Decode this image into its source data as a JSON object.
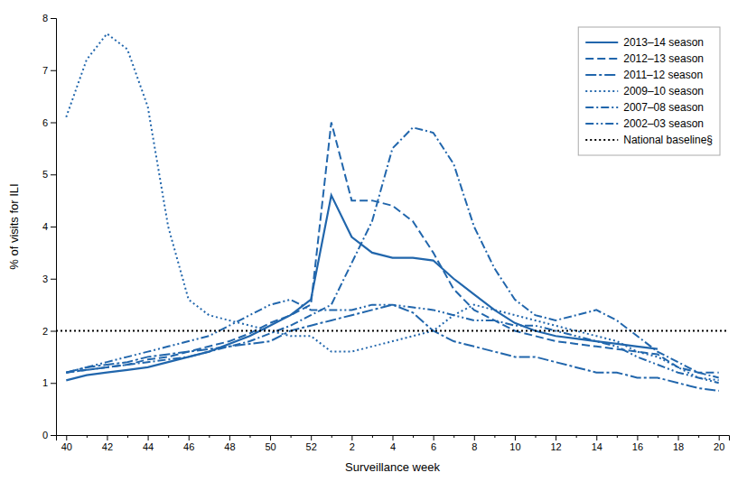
{
  "chart_data": {
    "type": "line",
    "x_label": "Surveillance week",
    "y_label": "% of visits for ILI",
    "categories": [
      "40",
      null,
      "42",
      null,
      "44",
      null,
      "46",
      null,
      "48",
      null,
      "50",
      null,
      "52",
      null,
      "2",
      null,
      "4",
      null,
      "6",
      null,
      "8",
      null,
      "10",
      null,
      "12",
      null,
      "14",
      null,
      "16",
      null,
      "18",
      null,
      "20"
    ],
    "ylim": [
      0,
      8
    ],
    "yticks": [
      0,
      1,
      2,
      3,
      4,
      5,
      6,
      7,
      8
    ],
    "grid": false,
    "legend": "upper right",
    "series": [
      {
        "name": "2013–14 season",
        "color": "#2166ac",
        "line_style": "solid",
        "values": [
          1.05,
          1.15,
          1.2,
          1.25,
          1.3,
          1.4,
          1.5,
          1.6,
          1.75,
          1.9,
          2.1,
          2.3,
          2.6,
          4.6,
          3.8,
          3.5,
          3.4,
          3.4,
          3.35,
          3.0,
          2.7,
          2.4,
          2.15,
          2.0,
          1.9,
          1.85,
          1.8,
          1.75,
          1.7,
          1.65,
          null,
          null,
          null
        ]
      },
      {
        "name": "2012–13 season",
        "color": "#2166ac",
        "line_style": "dashed",
        "values": [
          1.2,
          1.25,
          1.3,
          1.35,
          1.45,
          1.5,
          1.6,
          1.7,
          1.8,
          1.95,
          2.15,
          2.3,
          2.5,
          6.0,
          4.5,
          4.5,
          4.4,
          4.1,
          3.5,
          2.8,
          2.4,
          2.2,
          2.0,
          1.9,
          1.8,
          1.75,
          1.7,
          1.65,
          1.6,
          1.55,
          1.3,
          1.2,
          1.2
        ]
      },
      {
        "name": "2011–12 season",
        "color": "#2166ac",
        "line_style": "longdashdot",
        "values": [
          1.2,
          1.3,
          1.35,
          1.4,
          1.5,
          1.55,
          1.6,
          1.65,
          1.7,
          1.75,
          1.8,
          2.0,
          2.1,
          2.2,
          2.3,
          2.4,
          2.5,
          2.35,
          2.0,
          1.8,
          1.7,
          1.6,
          1.5,
          1.5,
          1.4,
          1.3,
          1.2,
          1.2,
          1.1,
          1.1,
          1.0,
          0.9,
          0.85
        ]
      },
      {
        "name": "2009–10 season",
        "color": "#2166ac",
        "line_style": "dotted",
        "values": [
          6.1,
          7.2,
          7.7,
          7.4,
          6.3,
          4.0,
          2.6,
          2.3,
          2.2,
          2.1,
          2.0,
          1.9,
          1.9,
          1.6,
          1.6,
          1.7,
          1.8,
          1.9,
          2.0,
          2.3,
          2.5,
          2.4,
          2.3,
          2.2,
          2.1,
          2.0,
          1.9,
          1.8,
          1.6,
          1.5,
          1.3,
          1.1,
          1.05
        ]
      },
      {
        "name": "2007–08 season",
        "color": "#2166ac",
        "line_style": "dashdot",
        "values": [
          1.2,
          1.25,
          1.3,
          1.35,
          1.4,
          1.45,
          1.5,
          1.6,
          1.7,
          1.8,
          1.95,
          2.1,
          2.3,
          2.5,
          3.3,
          4.1,
          5.5,
          5.9,
          5.8,
          5.2,
          4.0,
          3.2,
          2.6,
          2.3,
          2.2,
          2.3,
          2.4,
          2.2,
          1.9,
          1.6,
          1.4,
          1.2,
          1.1
        ]
      },
      {
        "name": "2002–03 season",
        "color": "#2166ac",
        "line_style": "dashdotdot",
        "values": [
          1.2,
          1.3,
          1.4,
          1.5,
          1.6,
          1.7,
          1.8,
          1.9,
          2.1,
          2.3,
          2.5,
          2.6,
          2.4,
          2.4,
          2.4,
          2.5,
          2.5,
          2.45,
          2.4,
          2.3,
          2.2,
          2.2,
          2.1,
          2.1,
          2.0,
          1.9,
          1.8,
          1.7,
          1.5,
          1.35,
          1.2,
          1.1,
          1.0
        ]
      },
      {
        "name": "National baseline§",
        "type": "hline",
        "color": "#000000",
        "line_style": "dotted",
        "value": 2.0
      }
    ]
  }
}
